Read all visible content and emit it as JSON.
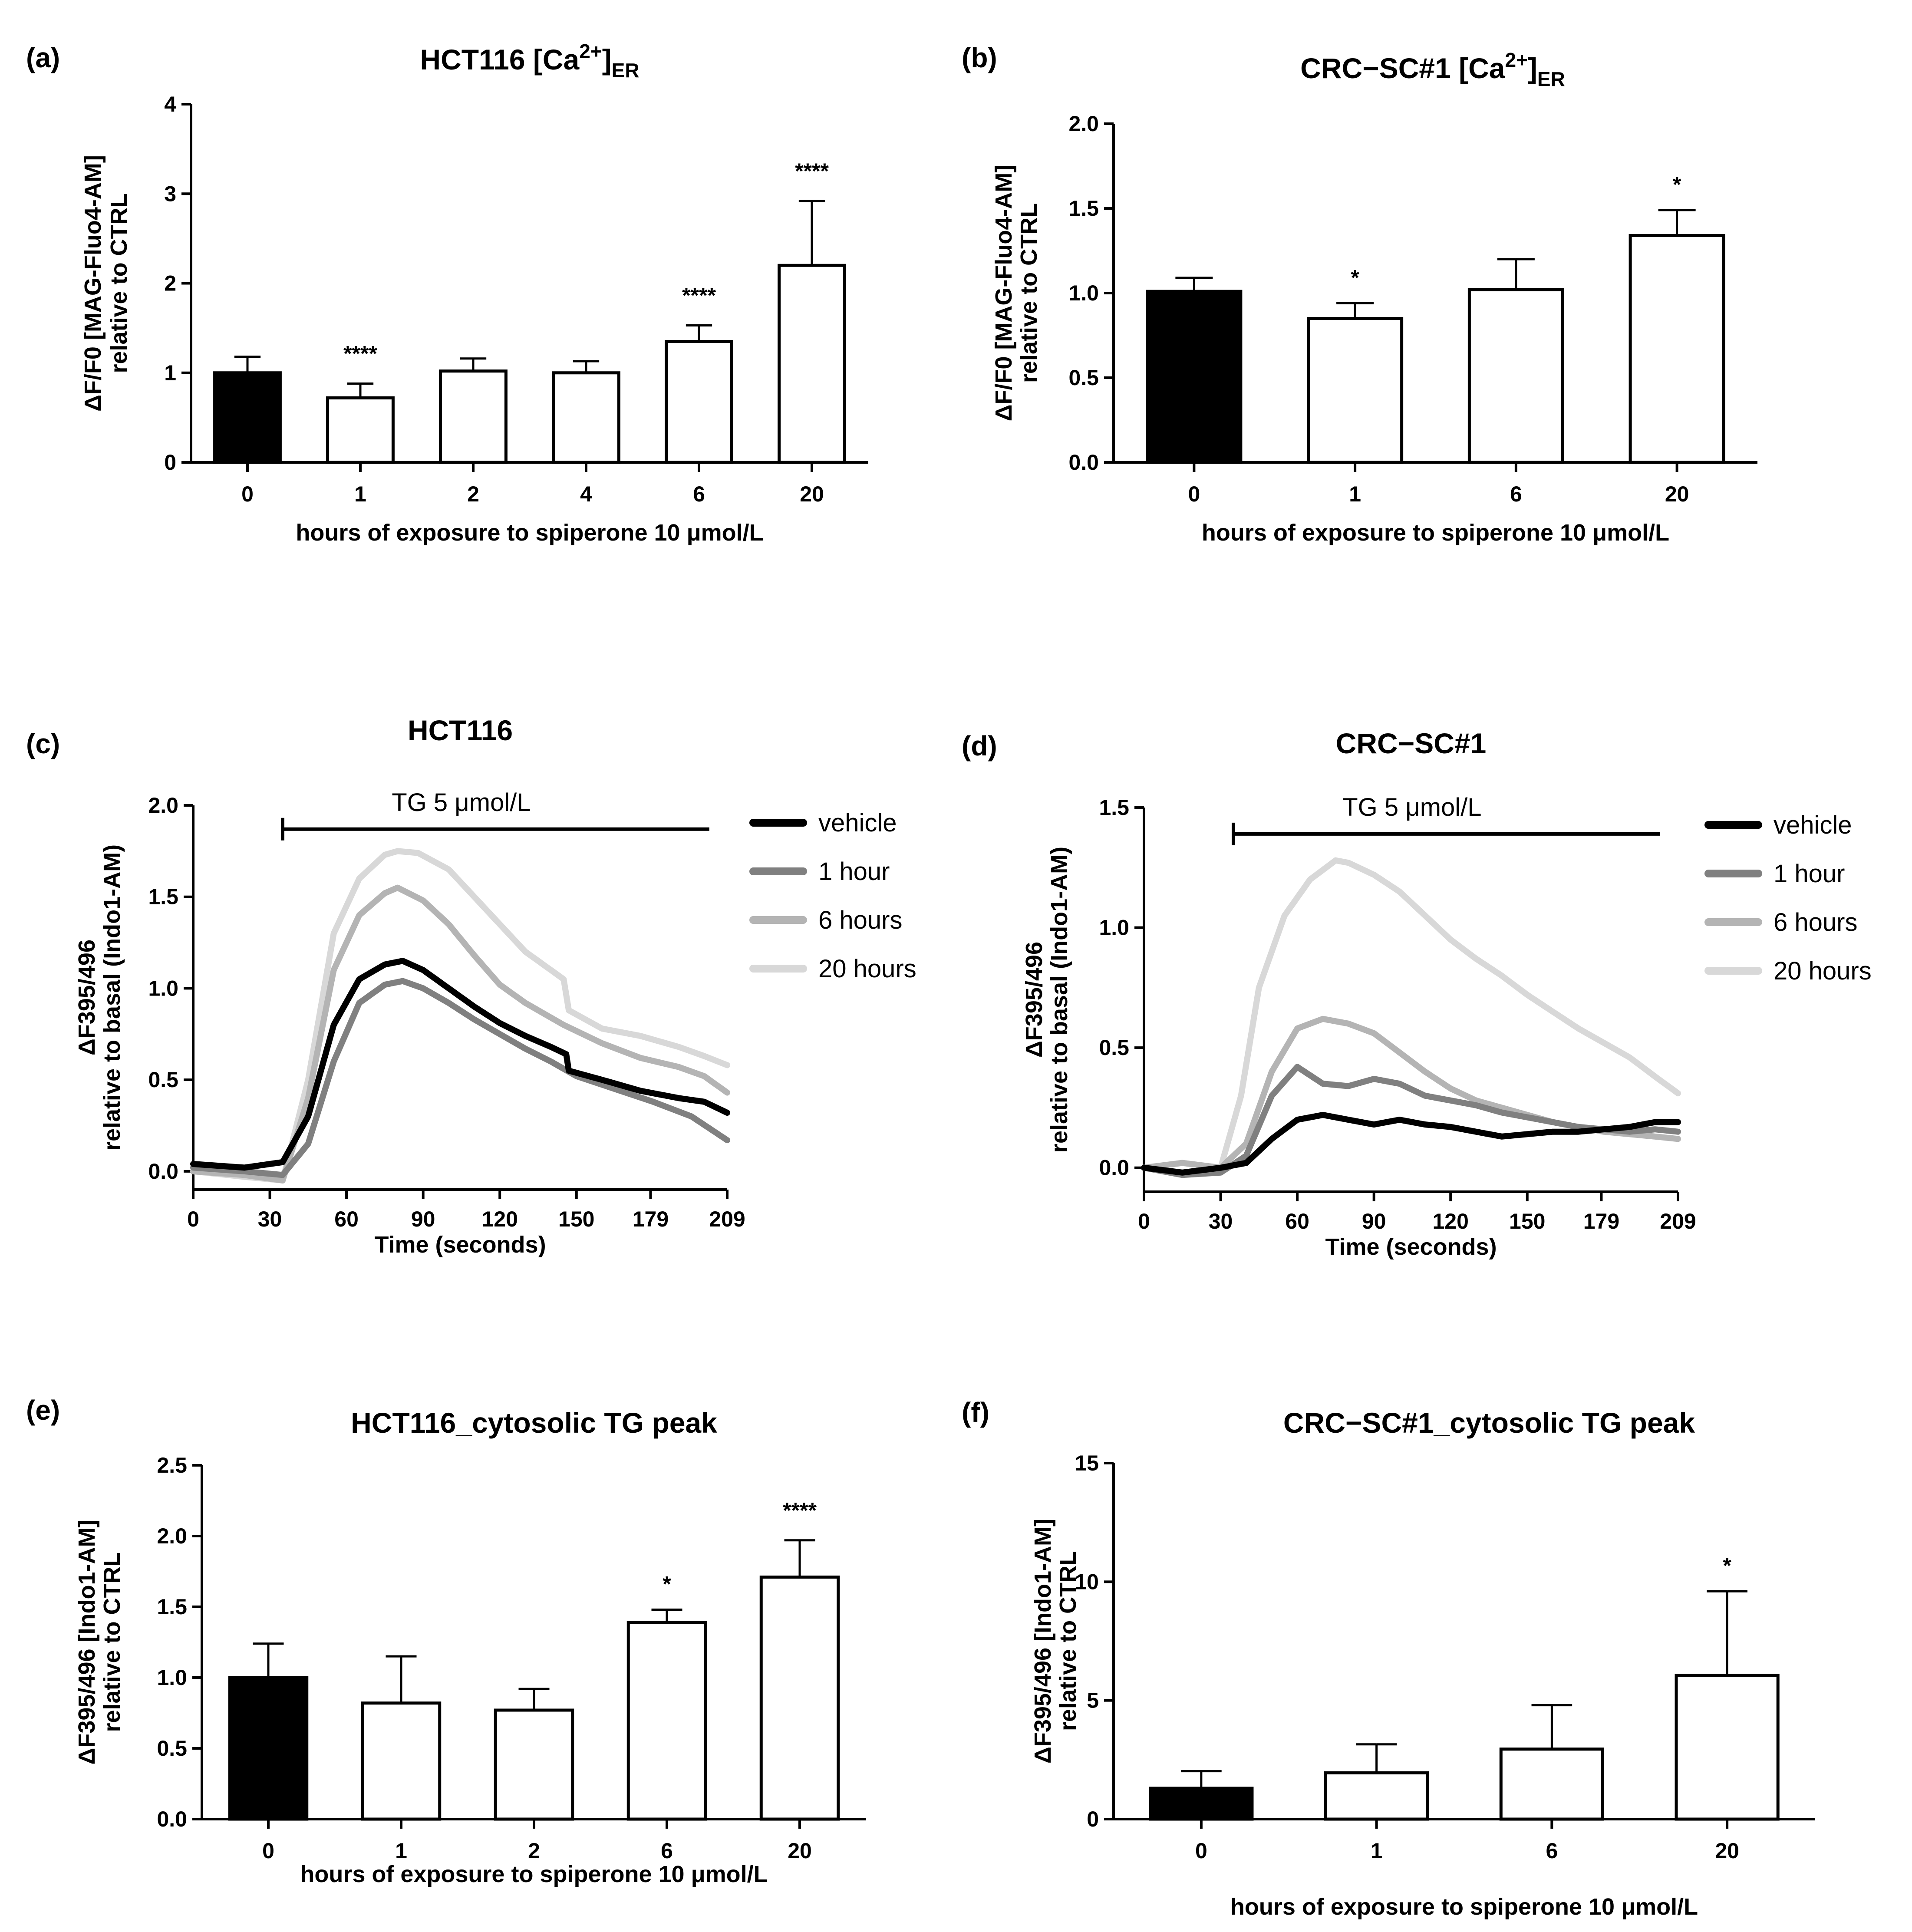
{
  "figure": {
    "panels": [
      {
        "id": "a",
        "letter": "(a)",
        "title": "HCT116 [Ca",
        "title_sup": "2+",
        "title_post": "]",
        "title_sub": "ER"
      },
      {
        "id": "b",
        "letter": "(b)",
        "title": "CRC−SC#1 [Ca",
        "title_sup": "2+",
        "title_post": "]",
        "title_sub": "ER"
      },
      {
        "id": "c",
        "letter": "(c)",
        "title": "HCT116",
        "title_sup": "",
        "title_post": "",
        "title_sub": ""
      },
      {
        "id": "d",
        "letter": "(d)",
        "title": "CRC−SC#1",
        "title_sup": "",
        "title_post": "",
        "title_sub": ""
      },
      {
        "id": "e",
        "letter": "(e)",
        "title": "HCT116_cytosolic TG peak",
        "title_sup": "",
        "title_post": "",
        "title_sub": ""
      },
      {
        "id": "f",
        "letter": "(f)",
        "title": "CRC−SC#1_cytosolic TG peak",
        "title_sup": "",
        "title_post": "",
        "title_sub": ""
      }
    ]
  },
  "chart_data": [
    {
      "panel": "a",
      "type": "bar",
      "title": "HCT116 [Ca2+]ER",
      "xlabel": "hours of exposure to spiperone 10 μmol/L",
      "ylabel": [
        "ΔF/F0 [MAG-Fluo4-AM]",
        "relative to CTRL"
      ],
      "categories": [
        "0",
        "1",
        "2",
        "4",
        "6",
        "20"
      ],
      "values": [
        1.0,
        0.72,
        1.02,
        1.0,
        1.35,
        2.2
      ],
      "errors": [
        0.18,
        0.16,
        0.14,
        0.13,
        0.18,
        0.72
      ],
      "significance": [
        "",
        "****",
        "",
        "",
        "****",
        "****"
      ],
      "bar_colors": [
        "#000000",
        "#ffffff",
        "#ffffff",
        "#ffffff",
        "#ffffff",
        "#ffffff"
      ],
      "ylim": [
        0,
        4
      ],
      "yticks": [
        0,
        1,
        2,
        3,
        4
      ],
      "ytick_labels": [
        "0",
        "1",
        "2",
        "3",
        "4"
      ]
    },
    {
      "panel": "b",
      "type": "bar",
      "title": "CRC−SC#1 [Ca2+]ER",
      "xlabel": "hours of exposure to spiperone 10 μmol/L",
      "ylabel": [
        "ΔF/F0 [MAG-Fluo4-AM]",
        "relative to CTRL"
      ],
      "categories": [
        "0",
        "1",
        "6",
        "20"
      ],
      "values": [
        1.01,
        0.85,
        1.02,
        1.34
      ],
      "errors": [
        0.08,
        0.09,
        0.18,
        0.15
      ],
      "significance": [
        "",
        "*",
        "",
        "*"
      ],
      "bar_colors": [
        "#000000",
        "#ffffff",
        "#ffffff",
        "#ffffff"
      ],
      "ylim": [
        0,
        2.0
      ],
      "yticks": [
        0,
        0.5,
        1.0,
        1.5,
        2.0
      ],
      "ytick_labels": [
        "0.0",
        "0.5",
        "1.0",
        "1.5",
        "2.0"
      ]
    },
    {
      "panel": "c",
      "type": "line",
      "title": "HCT116",
      "xlabel": "Time (seconds)",
      "ylabel": [
        "ΔF395/496",
        "relative to basal (Indo1-AM)"
      ],
      "xlim": [
        0,
        209
      ],
      "ylim": [
        -0.1,
        2.0
      ],
      "xticks": [
        0,
        30,
        60,
        90,
        120,
        150,
        179,
        209
      ],
      "xtick_labels": [
        "0",
        "30",
        "60",
        "90",
        "120",
        "150",
        "179",
        "209"
      ],
      "yticks": [
        0,
        0.5,
        1.0,
        1.5,
        2.0
      ],
      "ytick_labels": [
        "0.0",
        "0.5",
        "1.0",
        "1.5",
        "2.0"
      ],
      "annotation": {
        "text": "TG 5 μmol/L",
        "x_start": 35,
        "x_end": 202,
        "y": 1.87
      },
      "series": [
        {
          "name": "vehicle",
          "color": "#000000",
          "x": [
            0,
            20,
            35,
            45,
            55,
            65,
            75,
            82,
            90,
            100,
            110,
            120,
            130,
            140,
            146,
            147,
            160,
            175,
            190,
            200,
            209
          ],
          "y": [
            0.04,
            0.02,
            0.05,
            0.3,
            0.8,
            1.05,
            1.13,
            1.15,
            1.1,
            1.0,
            0.9,
            0.81,
            0.74,
            0.68,
            0.64,
            0.55,
            0.5,
            0.44,
            0.4,
            0.38,
            0.32
          ]
        },
        {
          "name": "1 hour",
          "color": "#808080",
          "x": [
            0,
            20,
            35,
            45,
            55,
            65,
            75,
            82,
            90,
            100,
            110,
            120,
            130,
            140,
            150,
            165,
            180,
            195,
            209
          ],
          "y": [
            0.02,
            0.0,
            -0.02,
            0.15,
            0.6,
            0.92,
            1.02,
            1.04,
            1.0,
            0.92,
            0.83,
            0.75,
            0.67,
            0.6,
            0.52,
            0.45,
            0.38,
            0.3,
            0.17
          ]
        },
        {
          "name": "6 hours",
          "color": "#b4b4b4",
          "x": [
            0,
            20,
            35,
            45,
            55,
            65,
            75,
            80,
            90,
            100,
            110,
            120,
            130,
            145,
            160,
            175,
            190,
            200,
            209
          ],
          "y": [
            0.0,
            -0.02,
            -0.05,
            0.4,
            1.1,
            1.4,
            1.52,
            1.55,
            1.48,
            1.35,
            1.18,
            1.02,
            0.92,
            0.8,
            0.7,
            0.62,
            0.57,
            0.52,
            0.43
          ]
        },
        {
          "name": "20 hours",
          "color": "#d8d8d8",
          "x": [
            0,
            20,
            35,
            45,
            55,
            65,
            75,
            80,
            88,
            100,
            110,
            120,
            130,
            140,
            145,
            147,
            160,
            175,
            190,
            200,
            209
          ],
          "y": [
            0.0,
            -0.03,
            -0.05,
            0.5,
            1.3,
            1.6,
            1.73,
            1.75,
            1.74,
            1.65,
            1.5,
            1.35,
            1.2,
            1.1,
            1.05,
            0.88,
            0.78,
            0.74,
            0.68,
            0.63,
            0.58
          ]
        }
      ]
    },
    {
      "panel": "d",
      "type": "line",
      "title": "CRC−SC#1",
      "xlabel": "Time (seconds)",
      "ylabel": [
        "ΔF395/496",
        "relative to basal (Indo1-AM)"
      ],
      "xlim": [
        0,
        209
      ],
      "ylim": [
        -0.1,
        1.5
      ],
      "xticks": [
        0,
        30,
        60,
        90,
        120,
        150,
        179,
        209
      ],
      "xtick_labels": [
        "0",
        "30",
        "60",
        "90",
        "120",
        "150",
        "179",
        "209"
      ],
      "yticks": [
        0,
        0.5,
        1.0,
        1.5
      ],
      "ytick_labels": [
        "0.0",
        "0.5",
        "1.0",
        "1.5"
      ],
      "annotation": {
        "text": "TG 5 μmol/L",
        "x_start": 35,
        "x_end": 202,
        "y": 1.39
      },
      "series": [
        {
          "name": "vehicle",
          "color": "#000000",
          "x": [
            0,
            15,
            30,
            40,
            50,
            60,
            70,
            80,
            90,
            100,
            110,
            120,
            130,
            140,
            150,
            160,
            170,
            180,
            190,
            200,
            209
          ],
          "y": [
            0.0,
            -0.02,
            0.0,
            0.02,
            0.12,
            0.2,
            0.22,
            0.2,
            0.18,
            0.2,
            0.18,
            0.17,
            0.15,
            0.13,
            0.14,
            0.15,
            0.15,
            0.16,
            0.17,
            0.19,
            0.19
          ]
        },
        {
          "name": "1 hour",
          "color": "#808080",
          "x": [
            0,
            15,
            30,
            40,
            50,
            60,
            70,
            80,
            90,
            100,
            110,
            120,
            130,
            140,
            150,
            160,
            170,
            180,
            190,
            200,
            209
          ],
          "y": [
            0.0,
            -0.03,
            -0.02,
            0.05,
            0.3,
            0.42,
            0.35,
            0.34,
            0.37,
            0.35,
            0.3,
            0.28,
            0.26,
            0.23,
            0.21,
            0.19,
            0.17,
            0.16,
            0.15,
            0.16,
            0.15
          ]
        },
        {
          "name": "6 hours",
          "color": "#b4b4b4",
          "x": [
            0,
            15,
            30,
            40,
            50,
            60,
            70,
            80,
            90,
            100,
            110,
            120,
            130,
            140,
            150,
            160,
            170,
            180,
            190,
            200,
            209
          ],
          "y": [
            0.0,
            0.02,
            0.0,
            0.1,
            0.4,
            0.58,
            0.62,
            0.6,
            0.56,
            0.48,
            0.4,
            0.33,
            0.28,
            0.25,
            0.22,
            0.19,
            0.17,
            0.15,
            0.14,
            0.13,
            0.12
          ]
        },
        {
          "name": "20 hours",
          "color": "#d8d8d8",
          "x": [
            0,
            15,
            30,
            38,
            45,
            55,
            65,
            75,
            80,
            90,
            100,
            110,
            120,
            130,
            140,
            150,
            160,
            170,
            180,
            190,
            200,
            209
          ],
          "y": [
            0.0,
            0.02,
            0.0,
            0.3,
            0.75,
            1.05,
            1.2,
            1.28,
            1.27,
            1.22,
            1.15,
            1.05,
            0.95,
            0.87,
            0.8,
            0.72,
            0.65,
            0.58,
            0.52,
            0.46,
            0.38,
            0.31
          ]
        }
      ]
    },
    {
      "panel": "e",
      "type": "bar",
      "title": "HCT116_cytosolic TG peak",
      "xlabel": "hours of exposure to spiperone 10 μmol/L",
      "ylabel": [
        "ΔF395/496 [Indo1-AM]",
        "relative to CTRL"
      ],
      "categories": [
        "0",
        "1",
        "2",
        "6",
        "20"
      ],
      "values": [
        1.0,
        0.82,
        0.77,
        1.39,
        1.71
      ],
      "errors": [
        0.24,
        0.33,
        0.15,
        0.09,
        0.26
      ],
      "significance": [
        "",
        "",
        "",
        "*",
        "****"
      ],
      "bar_colors": [
        "#000000",
        "#ffffff",
        "#ffffff",
        "#ffffff",
        "#ffffff"
      ],
      "ylim": [
        0,
        2.5
      ],
      "yticks": [
        0,
        0.5,
        1.0,
        1.5,
        2.0,
        2.5
      ],
      "ytick_labels": [
        "0.0",
        "0.5",
        "1.0",
        "1.5",
        "2.0",
        "2.5"
      ]
    },
    {
      "panel": "f",
      "type": "bar",
      "title": "CRC−SC#1_cytosolic TG peak",
      "xlabel": "hours of exposure to spiperone 10 μmol/L",
      "ylabel": [
        "ΔF395/496 [Indo1-AM]",
        "relative to CTRL"
      ],
      "categories": [
        "0",
        "1",
        "6",
        "20"
      ],
      "values": [
        1.3,
        1.95,
        2.95,
        6.05
      ],
      "errors": [
        0.72,
        1.2,
        1.85,
        3.55
      ],
      "significance": [
        "",
        "",
        "",
        "*"
      ],
      "bar_colors": [
        "#000000",
        "#ffffff",
        "#ffffff",
        "#ffffff"
      ],
      "ylim": [
        0,
        15
      ],
      "yticks": [
        0,
        5,
        10,
        15
      ],
      "ytick_labels": [
        "0",
        "5",
        "10",
        "15"
      ]
    }
  ]
}
